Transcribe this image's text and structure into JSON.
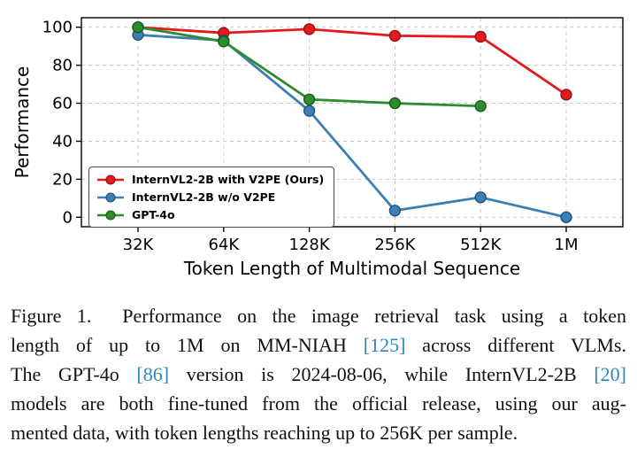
{
  "figure": {
    "cite_color": "#2e86c1",
    "caption_lines": [
      {
        "justify": true,
        "segments": [
          {
            "t": "text",
            "s": "Figure 1.  Performance on the image retrieval task using a token"
          }
        ]
      },
      {
        "justify": true,
        "segments": [
          {
            "t": "text",
            "s": "length of up to 1M on MM-NIAH "
          },
          {
            "t": "cite",
            "s": "[125]"
          },
          {
            "t": "text",
            "s": " across different VLMs."
          }
        ]
      },
      {
        "justify": true,
        "segments": [
          {
            "t": "text",
            "s": "The GPT-4o "
          },
          {
            "t": "cite",
            "s": "[86]"
          },
          {
            "t": "text",
            "s": " version is 2024-08-06, while InternVL2-2B "
          },
          {
            "t": "cite",
            "s": "[20]"
          }
        ]
      },
      {
        "justify": true,
        "segments": [
          {
            "t": "text",
            "s": "models are both fine-tuned from the official release, using our aug-"
          }
        ]
      },
      {
        "justify": false,
        "segments": [
          {
            "t": "text",
            "s": "mented data, with token lengths reaching up to 256K per sample."
          }
        ]
      }
    ]
  },
  "chart_data": {
    "type": "line",
    "title": "",
    "xlabel": "Token Length of Multimodal Sequence",
    "ylabel": "Performance",
    "categories": [
      "32K",
      "64K",
      "128K",
      "256K",
      "512K",
      "1M"
    ],
    "yticks": [
      0,
      20,
      40,
      60,
      80,
      100
    ],
    "ylim": [
      -5,
      105
    ],
    "grid": "dashed",
    "legend_position": "lower-left",
    "series": [
      {
        "name": "InternVL2-2B with V2PE (Ours)",
        "color": "#e41a1c",
        "edge": "#8f0f10",
        "values": [
          100,
          97,
          99,
          95.5,
          95,
          64.5
        ]
      },
      {
        "name": "InternVL2-2B w/o V2PE",
        "color": "#3b7fb5",
        "edge": "#1c4f74",
        "values": [
          96,
          93,
          56,
          3.5,
          10.5,
          0
        ]
      },
      {
        "name": "GPT-4o",
        "color": "#2e8b2e",
        "edge": "#155915",
        "values": [
          100,
          92.5,
          62,
          60,
          58.5,
          null
        ]
      }
    ]
  }
}
